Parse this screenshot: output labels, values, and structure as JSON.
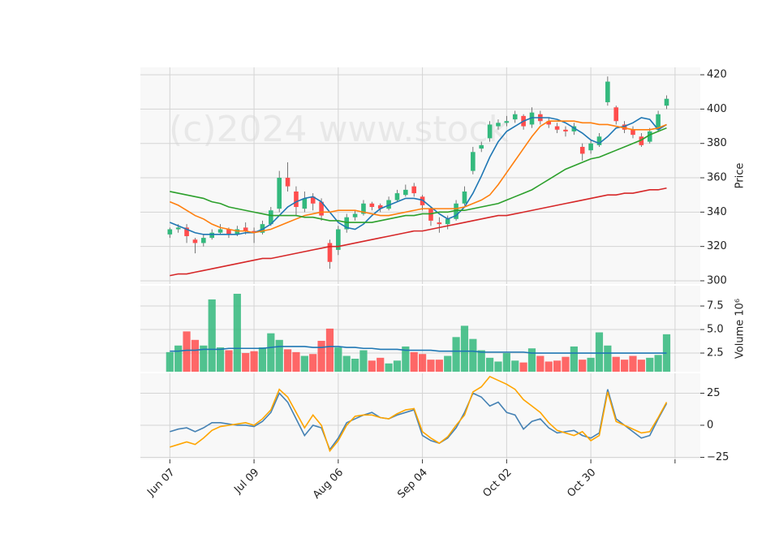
{
  "chart_data": [
    {
      "type": "candlestick",
      "watermark": "(c)2024 www.stock",
      "ylabel": "Price",
      "ylim": [
        298.1,
        424.3
      ],
      "yticks": [
        300,
        320,
        340,
        360,
        380,
        400,
        420
      ],
      "grid": true,
      "up_color": "#33b97d",
      "down_color": "#ff4d4d",
      "open": [
        327,
        330,
        331,
        324,
        322,
        325,
        328,
        330,
        327,
        331,
        329,
        328,
        333,
        342,
        360,
        352,
        342,
        349,
        346,
        322,
        318,
        330,
        337,
        339,
        345,
        344,
        342,
        347,
        350,
        355,
        349,
        342,
        334,
        333,
        336,
        345,
        364,
        377,
        383,
        390,
        392,
        394,
        396,
        391,
        397,
        393,
        390,
        388,
        387,
        378,
        376,
        379,
        404,
        401,
        391,
        388,
        384,
        381,
        388,
        402
      ],
      "high": [
        331,
        333,
        333,
        325,
        327,
        330,
        333,
        331,
        332,
        334,
        331,
        335,
        343,
        364,
        369,
        355,
        352,
        351,
        348,
        324,
        332,
        339,
        341,
        347,
        346,
        345,
        349,
        353,
        356,
        357,
        350,
        343,
        337,
        338,
        347,
        355,
        378,
        381,
        393,
        394,
        396,
        399,
        397,
        401,
        399,
        395,
        392,
        390,
        392,
        380,
        382,
        386,
        419,
        402,
        393,
        390,
        386,
        389,
        399,
        408
      ],
      "low": [
        325,
        328,
        322,
        316,
        320,
        324,
        327,
        325,
        326,
        327,
        322,
        327,
        332,
        340,
        352,
        338,
        340,
        341,
        335,
        307,
        315,
        328,
        335,
        338,
        341,
        340,
        341,
        346,
        349,
        349,
        341,
        332,
        328,
        330,
        335,
        344,
        362,
        375,
        381,
        388,
        390,
        392,
        388,
        389,
        391,
        389,
        386,
        384,
        385,
        370,
        374,
        378,
        402,
        391,
        386,
        383,
        378,
        380,
        387,
        400
      ],
      "close": [
        330,
        331,
        326,
        322,
        325,
        328,
        330,
        327,
        330,
        329,
        328,
        333,
        341,
        360,
        355,
        343,
        348,
        345,
        338,
        311,
        330,
        337,
        339,
        345,
        343,
        342,
        347,
        351,
        353,
        351,
        344,
        335,
        333,
        336,
        345,
        352,
        375,
        379,
        391,
        392,
        393,
        397,
        390,
        398,
        393,
        391,
        388,
        387,
        390,
        374,
        380,
        384,
        416,
        393,
        388,
        385,
        379,
        387,
        397,
        406
      ],
      "series": [
        {
          "color": "#1f77b4",
          "values": [
            334,
            332,
            330,
            328,
            327,
            327,
            327,
            327,
            327,
            328,
            328,
            330,
            333,
            338,
            343,
            346,
            348,
            349,
            346,
            340,
            334,
            331,
            330,
            333,
            338,
            342,
            344,
            346,
            348,
            348,
            347,
            343,
            339,
            336,
            338,
            343,
            351,
            361,
            372,
            381,
            387,
            390,
            393,
            395,
            395,
            395,
            394,
            392,
            389,
            386,
            382,
            380,
            384,
            389,
            390,
            392,
            395,
            394,
            388,
            391
          ]
        },
        {
          "color": "#ff7f0e",
          "values": [
            346,
            344,
            341,
            338,
            336,
            333,
            331,
            330,
            329,
            329,
            328,
            329,
            330,
            332,
            334,
            336,
            338,
            339,
            340,
            340,
            341,
            341,
            341,
            340,
            339,
            338,
            338,
            339,
            340,
            341,
            342,
            342,
            342,
            342,
            342,
            343,
            345,
            347,
            350,
            356,
            363,
            370,
            377,
            384,
            390,
            393,
            393,
            393,
            393,
            392,
            392,
            391,
            391,
            390,
            389,
            388,
            388,
            388,
            389,
            391
          ]
        },
        {
          "color": "#2ca02c",
          "values": [
            352,
            351,
            350,
            349,
            348,
            346,
            345,
            343,
            342,
            341,
            340,
            339,
            338,
            338,
            338,
            338,
            337,
            337,
            336,
            335,
            335,
            334,
            334,
            334,
            334,
            335,
            336,
            337,
            338,
            338,
            339,
            339,
            340,
            340,
            341,
            341,
            342,
            343,
            344,
            345,
            347,
            349,
            351,
            353,
            356,
            359,
            362,
            365,
            367,
            369,
            371,
            372,
            374,
            376,
            378,
            380,
            382,
            385,
            387,
            389
          ]
        },
        {
          "color": "#d62728",
          "values": [
            303,
            304,
            304,
            305,
            306,
            307,
            308,
            309,
            310,
            311,
            312,
            313,
            313,
            314,
            315,
            316,
            317,
            318,
            319,
            320,
            320,
            321,
            322,
            323,
            324,
            325,
            326,
            327,
            328,
            329,
            329,
            330,
            331,
            332,
            333,
            334,
            335,
            336,
            337,
            338,
            338,
            339,
            340,
            341,
            342,
            343,
            344,
            345,
            346,
            347,
            348,
            349,
            350,
            350,
            351,
            351,
            352,
            353,
            353,
            354
          ]
        }
      ]
    },
    {
      "type": "volume",
      "ylabel": "Volume  10⁶",
      "ylim": [
        0.52,
        9.66
      ],
      "yticks": [
        2.5,
        {
          "value": 5,
          "label": "5.0"
        },
        7.5
      ],
      "grid": true,
      "values": [
        2.6,
        3.3,
        4.8,
        3.9,
        3.3,
        8.2,
        3.1,
        2.8,
        8.8,
        2.5,
        2.7,
        3.1,
        4.6,
        3.9,
        2.9,
        2.6,
        2.2,
        2.4,
        3.8,
        5.1,
        3.1,
        2.2,
        1.9,
        2.8,
        1.7,
        2.0,
        1.4,
        1.7,
        3.2,
        2.6,
        2.4,
        1.8,
        1.8,
        2.2,
        4.2,
        5.4,
        4.0,
        2.8,
        2.0,
        1.6,
        2.5,
        1.7,
        1.5,
        3.0,
        2.2,
        1.6,
        1.7,
        2.1,
        3.2,
        1.8,
        2.0,
        4.7,
        3.3,
        2.1,
        1.8,
        2.2,
        1.8,
        2.0,
        2.3,
        4.5
      ],
      "series": [
        {
          "color": "#1f77b4",
          "values": [
            2.7,
            2.7,
            2.8,
            2.8,
            2.9,
            2.9,
            2.9,
            3.0,
            3.0,
            3.0,
            3.0,
            3.0,
            3.1,
            3.2,
            3.2,
            3.2,
            3.2,
            3.1,
            3.1,
            3.2,
            3.2,
            3.1,
            3.1,
            3.0,
            3.0,
            2.9,
            2.9,
            2.9,
            2.8,
            2.8,
            2.8,
            2.8,
            2.7,
            2.7,
            2.7,
            2.7,
            2.7,
            2.6,
            2.6,
            2.6,
            2.6,
            2.6,
            2.6,
            2.5,
            2.5,
            2.5,
            2.5,
            2.5,
            2.5,
            2.5,
            2.5,
            2.5,
            2.5,
            2.5,
            2.5,
            2.5,
            2.5,
            2.5,
            2.5,
            2.5
          ]
        }
      ]
    },
    {
      "type": "line",
      "ylim": [
        -26.6,
        40.5
      ],
      "yticks": [
        {
          "value": -25,
          "label": "−25"
        },
        0,
        25
      ],
      "grid": true,
      "xlim": [
        -3.5,
        63
      ],
      "xticks": [
        {
          "value": 0,
          "label": "Jun 07"
        },
        {
          "value": 10,
          "label": "Jul 09"
        },
        {
          "value": 20,
          "label": "Aug 06"
        },
        {
          "value": 30,
          "label": "Sep 04"
        },
        {
          "value": 40,
          "label": "Oct 02"
        },
        {
          "value": 50,
          "label": "Oct 30"
        },
        {
          "value": 60
        }
      ],
      "series": [
        {
          "color": "#4682b4",
          "values": [
            -5,
            -3,
            -2,
            -5,
            -2,
            2,
            2,
            1,
            0,
            0,
            -1,
            3,
            10,
            25,
            18,
            5,
            -8,
            0,
            -2,
            -19,
            -10,
            2,
            5,
            8,
            10,
            6,
            5,
            8,
            10,
            12,
            -8,
            -12,
            -14,
            -10,
            -2,
            10,
            25,
            22,
            15,
            18,
            10,
            8,
            -3,
            3,
            5,
            -2,
            -6,
            -5,
            -4,
            -8,
            -10,
            -6,
            28,
            5,
            0,
            -5,
            -10,
            -8,
            5,
            17
          ]
        },
        {
          "color": "#ffa500",
          "values": [
            -17,
            -15,
            -13,
            -15,
            -10,
            -4,
            -1,
            0,
            1,
            2,
            0,
            5,
            12,
            28,
            22,
            10,
            -2,
            8,
            0,
            -20,
            -12,
            0,
            7,
            8,
            8,
            6,
            5,
            9,
            12,
            13,
            -5,
            -10,
            -14,
            -9,
            0,
            8,
            26,
            30,
            38,
            35,
            32,
            28,
            20,
            15,
            10,
            2,
            -4,
            -6,
            -8,
            -5,
            -12,
            -8,
            26,
            3,
            0,
            -3,
            -6,
            -5,
            6,
            18
          ]
        }
      ]
    }
  ]
}
